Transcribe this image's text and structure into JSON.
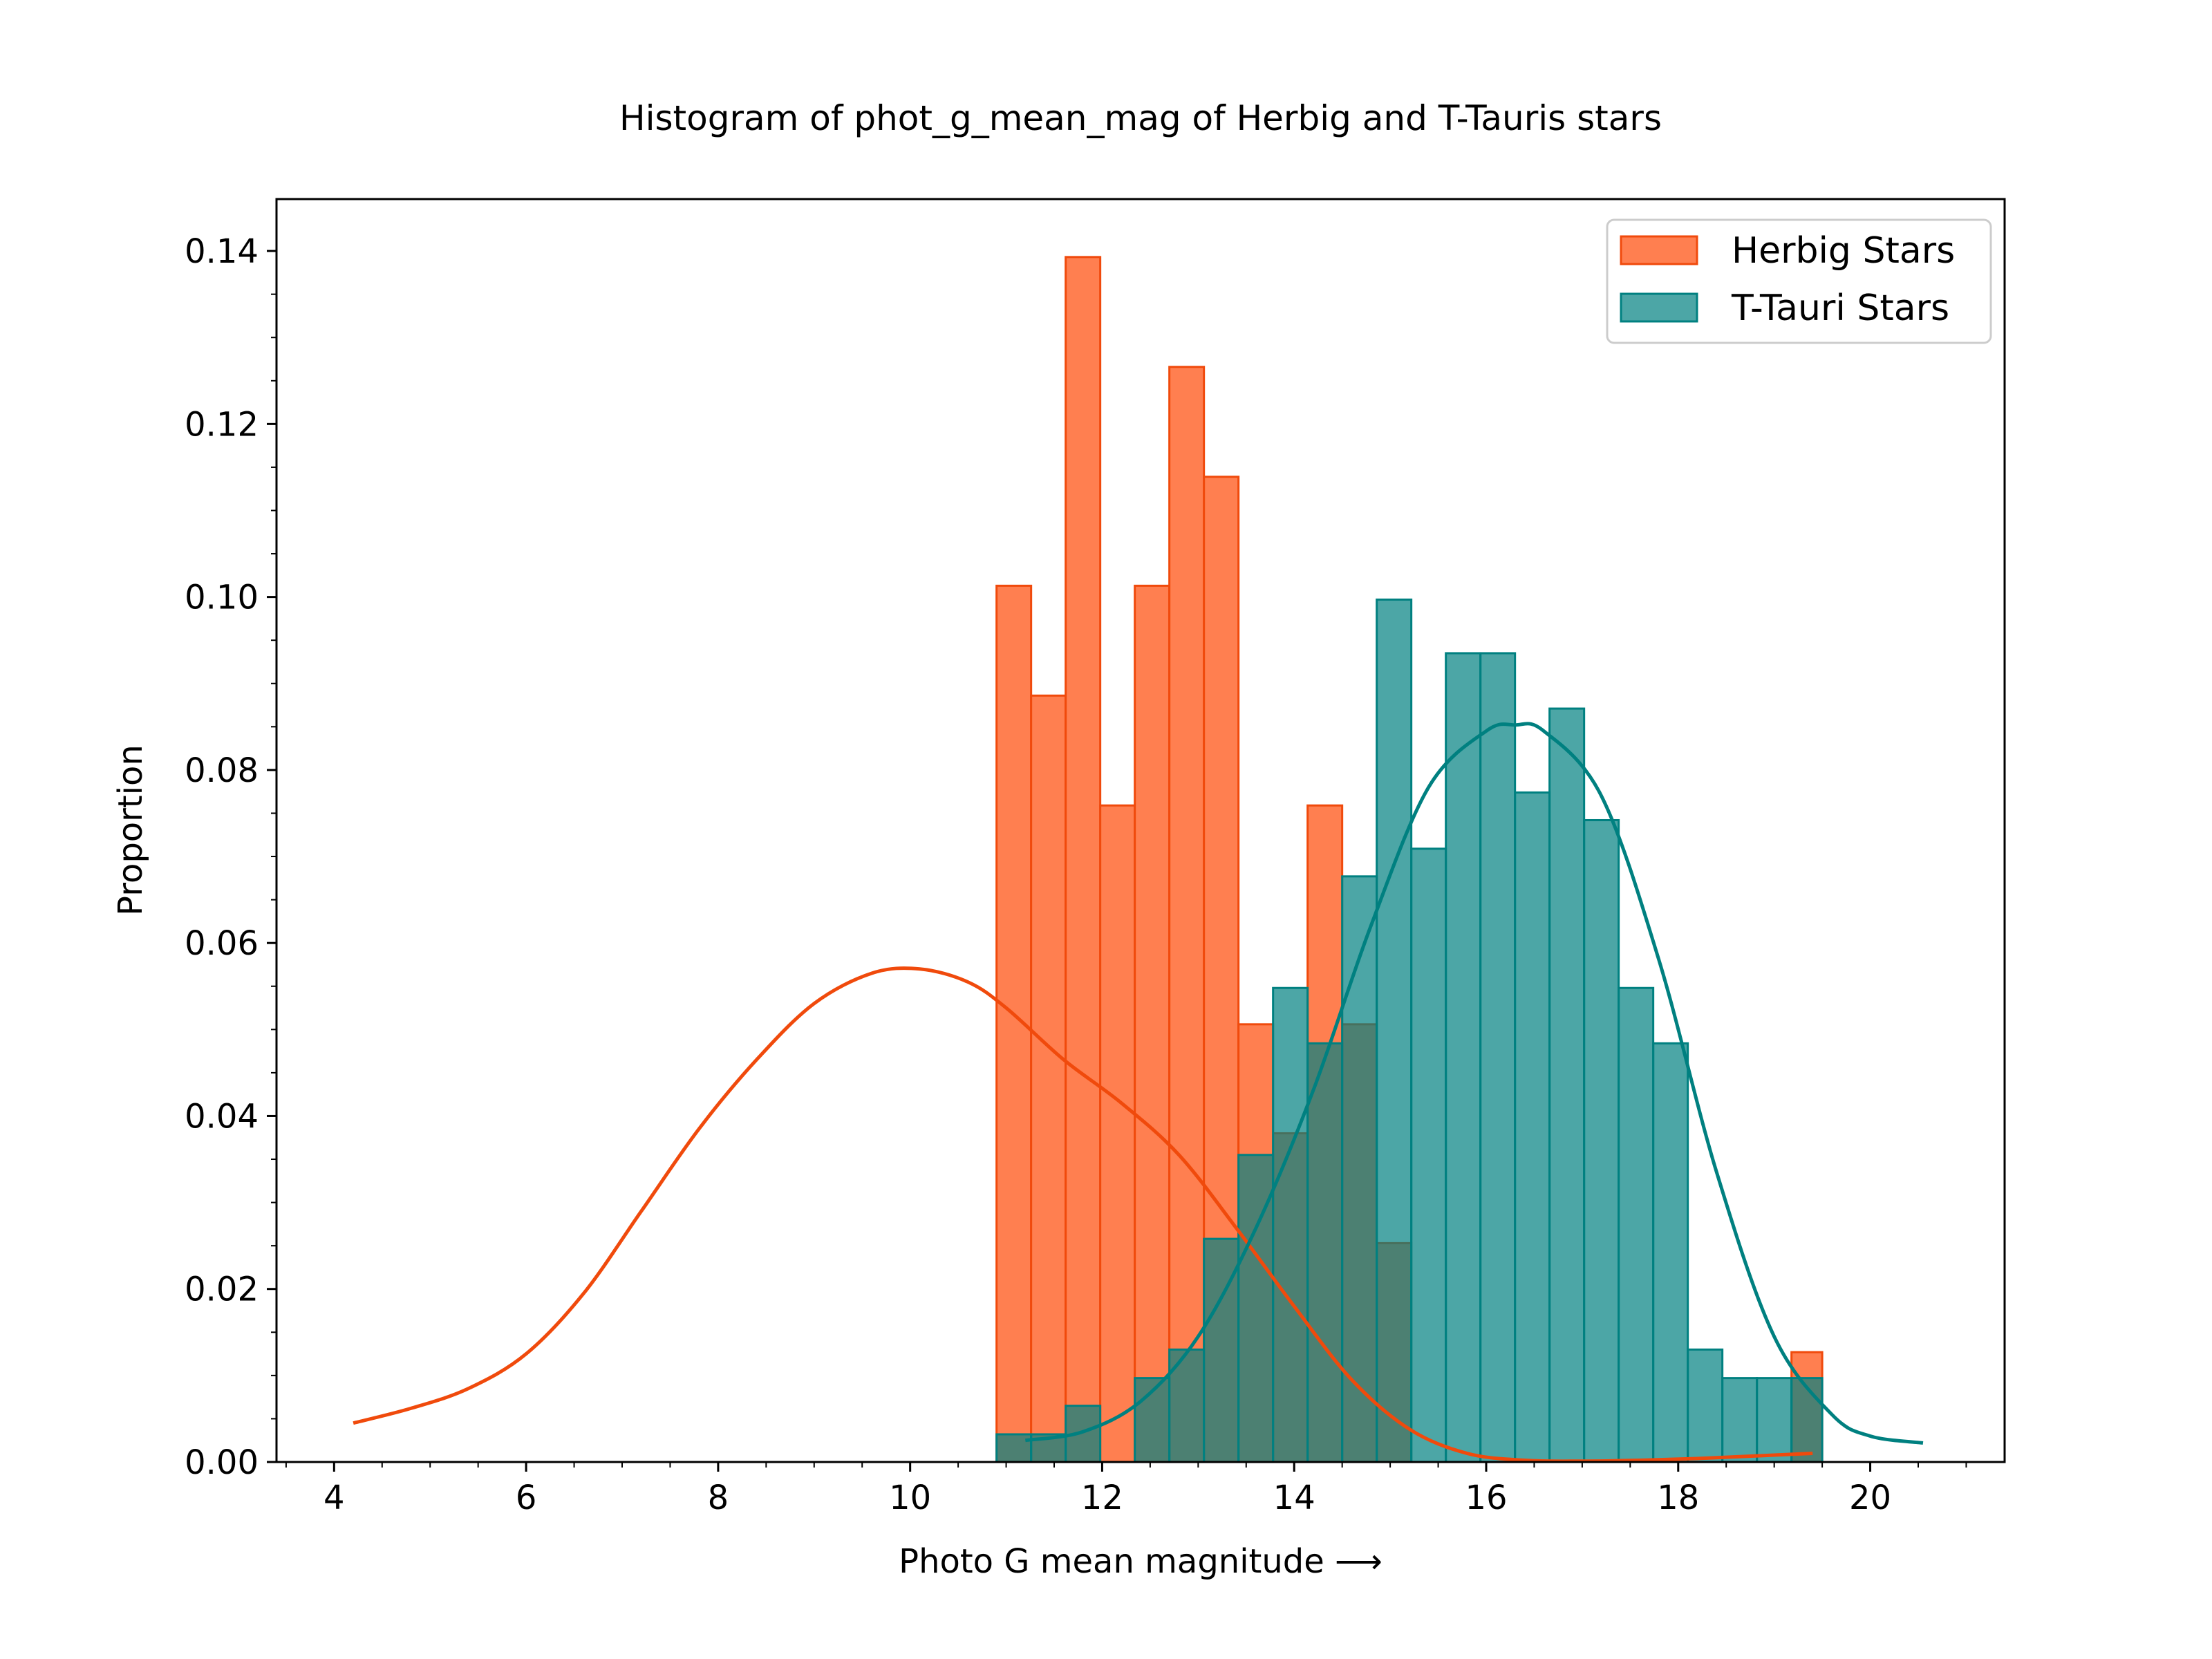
{
  "chart_data": {
    "type": "histogram",
    "title": "Histogram of phot_g_mean_mag of Herbig and T-Tauris stars",
    "xlabel": "Photo G mean magnitude  ⟶",
    "ylabel": "Proportion",
    "xlim": [
      3.4,
      21.4
    ],
    "ylim": [
      0,
      0.146
    ],
    "xticks": [
      4,
      6,
      8,
      10,
      12,
      14,
      16,
      18,
      20
    ],
    "xtick_labels": [
      "4",
      "6",
      "8",
      "10",
      "12",
      "14",
      "16",
      "18",
      "20"
    ],
    "yticks": [
      0,
      0.02,
      0.04,
      0.06,
      0.08,
      0.1,
      0.12,
      0.14
    ],
    "ytick_labels": [
      "0.00",
      "0.02",
      "0.04",
      "0.06",
      "0.08",
      "0.10",
      "0.12",
      "0.14"
    ],
    "grid": false,
    "legend_position": "top-right",
    "series": [
      {
        "name": "Herbig Stars",
        "fill": "#ff7f50",
        "edge": "#f04a0c",
        "bin_edges": [
          10.9,
          11.26,
          11.62,
          11.98,
          12.34,
          12.7,
          13.06,
          13.42,
          13.78,
          14.14,
          14.5,
          14.86,
          15.22,
          15.58,
          15.94,
          16.3,
          16.66,
          17.02,
          17.38,
          17.74,
          18.1,
          18.46,
          18.82,
          19.18,
          19.5
        ],
        "values": [
          0.1013,
          0.0886,
          0.1393,
          0.0759,
          0.1013,
          0.1266,
          0.1139,
          0.0506,
          0.038,
          0.0759,
          0.0506,
          0.0253,
          0,
          0,
          0,
          0,
          0,
          0,
          0,
          0,
          0,
          0,
          0,
          0.0127
        ],
        "kde": {
          "x": [
            4.2,
            4.8,
            5.4,
            6.0,
            6.6,
            7.2,
            7.8,
            8.4,
            9.0,
            9.6,
            10.1,
            10.6,
            11.0,
            11.6,
            12.2,
            12.8,
            13.4,
            14.0,
            14.6,
            15.2,
            15.8,
            16.4,
            17.0,
            17.6,
            18.2,
            18.8,
            19.4
          ],
          "y": [
            0.0045,
            0.0062,
            0.0085,
            0.0125,
            0.0195,
            0.029,
            0.0385,
            0.0465,
            0.053,
            0.0565,
            0.057,
            0.0555,
            0.0525,
            0.0465,
            0.0415,
            0.0355,
            0.027,
            0.018,
            0.0095,
            0.0038,
            0.001,
            0.0002,
            0.0001,
            0.0002,
            0.0004,
            0.0007,
            0.001
          ]
        }
      },
      {
        "name": "T-Tauri Stars",
        "fill": "#008080",
        "fill_opacity": 0.7,
        "edge": "#008080",
        "bin_edges": [
          10.9,
          11.26,
          11.62,
          11.98,
          12.34,
          12.7,
          13.06,
          13.42,
          13.78,
          14.14,
          14.5,
          14.86,
          15.22,
          15.58,
          15.94,
          16.3,
          16.66,
          17.02,
          17.38,
          17.74,
          18.1,
          18.46,
          18.82,
          19.18,
          19.5
        ],
        "values": [
          0.0032,
          0.0032,
          0.0065,
          0,
          0.0097,
          0.013,
          0.0258,
          0.0355,
          0.0548,
          0.0484,
          0.0677,
          0.0997,
          0.0709,
          0.0935,
          0.0935,
          0.0774,
          0.0871,
          0.0742,
          0.0548,
          0.0484,
          0.013,
          0.0097,
          0.0097,
          0.0097
        ],
        "bin_edges_override": [
          10.9,
          11.26,
          11.62,
          11.98,
          12.34,
          12.7,
          13.06,
          13.42,
          13.78,
          14.14,
          14.5,
          14.86,
          15.22,
          15.58,
          15.94,
          16.3,
          16.66,
          17.02,
          17.38,
          17.74,
          18.1,
          18.46,
          18.82,
          19.18,
          19.5
        ],
        "kde": {
          "x": [
            11.2,
            11.8,
            12.4,
            13.0,
            13.6,
            14.2,
            14.8,
            15.4,
            16.0,
            16.3,
            16.6,
            17.2,
            17.8,
            18.4,
            19.0,
            19.6,
            20.0,
            20.55
          ],
          "y": [
            0.0025,
            0.0035,
            0.007,
            0.0145,
            0.027,
            0.043,
            0.062,
            0.078,
            0.0845,
            0.0852,
            0.0845,
            0.077,
            0.058,
            0.0335,
            0.0145,
            0.0055,
            0.003,
            0.0022
          ]
        }
      }
    ]
  }
}
